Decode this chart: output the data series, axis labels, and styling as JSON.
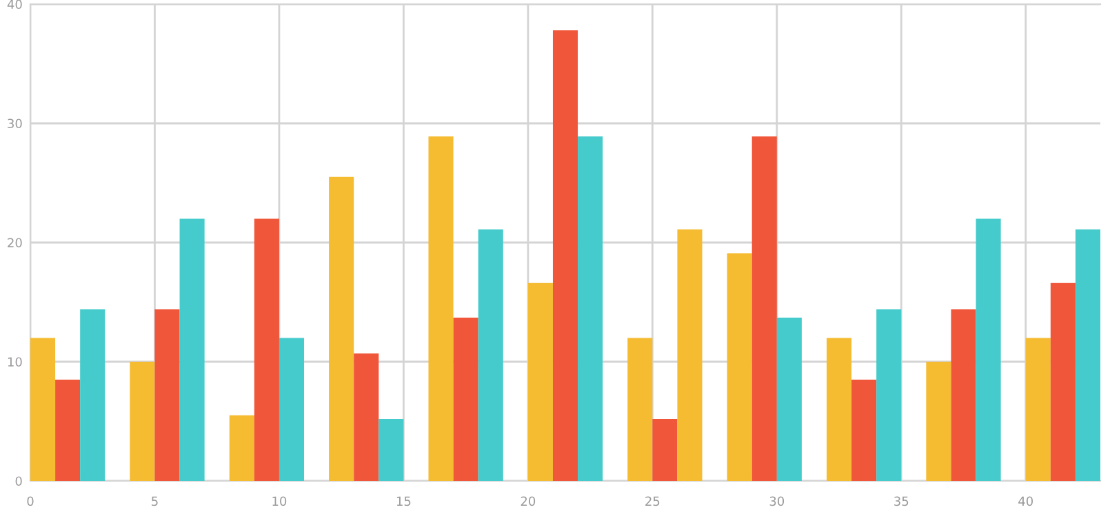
{
  "chart_data": {
    "type": "bar",
    "xlim": [
      0,
      43
    ],
    "xticks": [
      0,
      5,
      10,
      15,
      20,
      25,
      30,
      35,
      40
    ],
    "ylim": [
      0,
      40
    ],
    "yticks": [
      0,
      10,
      20,
      30,
      40
    ],
    "grid": true,
    "series": [
      {
        "color": "#f5bb31",
        "x": [
          0.5,
          4.5,
          8.5,
          12.5,
          16.5,
          20.5,
          24.5,
          28.5,
          32.5,
          36.5,
          40.5
        ],
        "values": [
          12,
          10,
          5.5,
          25.5,
          28.9,
          16.6,
          12,
          19.1,
          12,
          10,
          12
        ]
      },
      {
        "color": "#f0563a",
        "x": [
          1.5,
          5.5,
          9.5,
          13.5,
          17.5,
          21.5,
          25.5,
          29.5,
          33.5,
          37.5,
          41.5
        ],
        "values": [
          8.5,
          14.4,
          22,
          10.7,
          13.7,
          37.8,
          5.2,
          28.9,
          8.5,
          14.4,
          16.6
        ]
      },
      {
        "colors": [
          "#45cbcb",
          "#45cbcb",
          "#45cbcb",
          "#45cbcb",
          "#45cbcb",
          "#45cbcb",
          "#f5bb31",
          "#45cbcb",
          "#45cbcb",
          "#45cbcb",
          "#45cbcb"
        ],
        "x": [
          2.5,
          6.5,
          10.5,
          14.5,
          18.5,
          22.5,
          26.5,
          30.5,
          34.5,
          38.5,
          42.5
        ],
        "values": [
          14.4,
          22,
          12,
          5.2,
          21.1,
          28.9,
          21.1,
          13.7,
          14.4,
          22,
          21.1
        ]
      }
    ]
  }
}
